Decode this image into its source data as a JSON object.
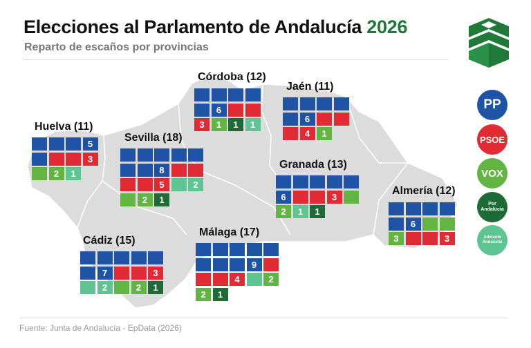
{
  "title_main": "Elecciones al Parlamento de Andalucía",
  "title_year": "2026",
  "subtitle": "Reparto de escaños por provincias",
  "source": "Fuente: Junta de Andalucía - EpData (2026)",
  "colors": {
    "PP": "#1f53a6",
    "PSOE": "#e02b35",
    "VOX": "#62b543",
    "PorA": "#1f6b37",
    "AA": "#5ec592",
    "map": "#dcdcdc"
  },
  "parties": [
    {
      "key": "PP",
      "label": "PP"
    },
    {
      "key": "PSOE",
      "label": "PSOE"
    },
    {
      "key": "VOX",
      "label": "VOX"
    },
    {
      "key": "PorA",
      "label": "Por Andalucía"
    },
    {
      "key": "AA",
      "label": "Adelante Andalucía"
    }
  ],
  "chart_data": {
    "type": "table",
    "title": "Elecciones al Parlamento de Andalucía 2026",
    "subtitle": "Reparto de escaños por provincias",
    "provinces": [
      {
        "name": "Huelva",
        "total": 11,
        "seats": {
          "PP": 5,
          "PSOE": 3,
          "VOX": 2,
          "AA": 1
        }
      },
      {
        "name": "Sevilla",
        "total": 18,
        "seats": {
          "PP": 8,
          "PSOE": 5,
          "AA": 2,
          "VOX": 2,
          "PorA": 1
        }
      },
      {
        "name": "Córdoba",
        "total": 12,
        "seats": {
          "PP": 6,
          "PSOE": 3,
          "VOX": 1,
          "PorA": 1,
          "AA": 1
        }
      },
      {
        "name": "Jaén",
        "total": 11,
        "seats": {
          "PP": 6,
          "PSOE": 4,
          "VOX": 1
        }
      },
      {
        "name": "Granada",
        "total": 13,
        "seats": {
          "PP": 6,
          "PSOE": 3,
          "VOX": 2,
          "AA": 1,
          "PorA": 1
        }
      },
      {
        "name": "Almería",
        "total": 12,
        "seats": {
          "PP": 6,
          "VOX": 3,
          "PSOE": 3
        }
      },
      {
        "name": "Cádiz",
        "total": 15,
        "seats": {
          "PP": 7,
          "PSOE": 3,
          "AA": 2,
          "VOX": 2,
          "PorA": 1
        }
      },
      {
        "name": "Málaga",
        "total": 17,
        "seats": {
          "PP": 9,
          "PSOE": 4,
          "VOX": 2,
          "AA": 1,
          "PorA": 1
        }
      }
    ]
  }
}
